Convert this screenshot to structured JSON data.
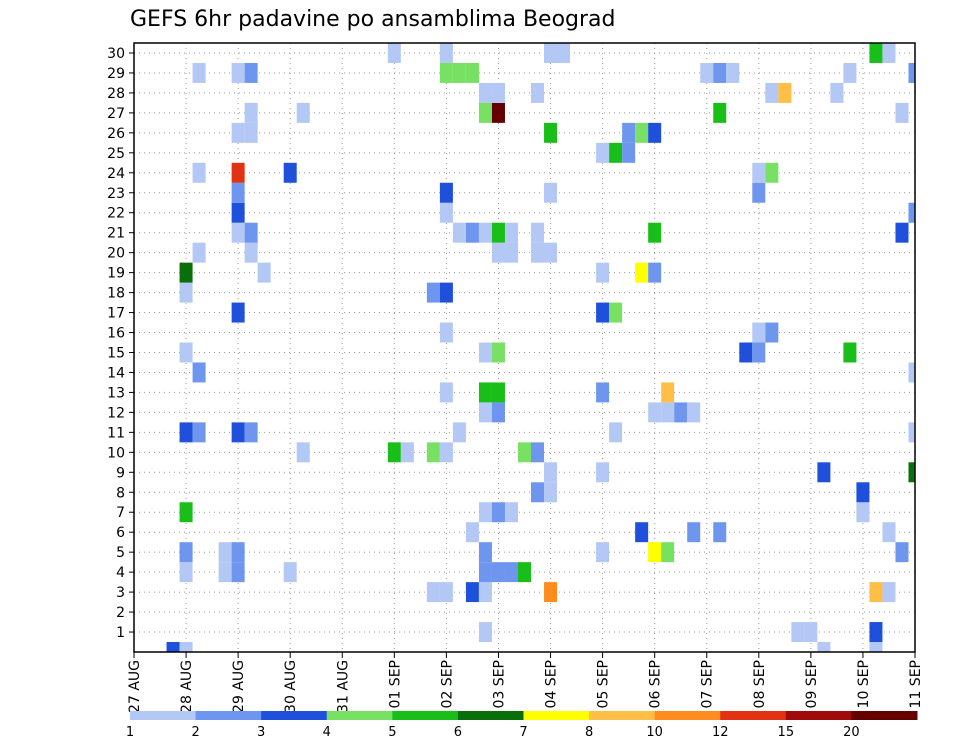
{
  "chart_data": {
    "type": "heatmap",
    "title": "GEFS 6hr padavine po ansamblima Beograd",
    "xlabel": "",
    "ylabel": "",
    "x_tick_labels": [
      "27 AUG",
      "28 AUG",
      "29 AUG",
      "30 AUG",
      "31 AUG",
      "01 SEP",
      "02 SEP",
      "03 SEP",
      "04 SEP",
      "05 SEP",
      "06 SEP",
      "07 SEP",
      "08 SEP",
      "09 SEP",
      "10 SEP",
      "11 SEP"
    ],
    "x_steps_per_day": 4,
    "x_range_steps": [
      0,
      60
    ],
    "y_tick_labels": [
      "1",
      "2",
      "3",
      "4",
      "5",
      "6",
      "7",
      "8",
      "9",
      "10",
      "11",
      "12",
      "13",
      "14",
      "15",
      "16",
      "17",
      "18",
      "19",
      "20",
      "21",
      "22",
      "23",
      "24",
      "25",
      "26",
      "27",
      "28",
      "29",
      "30"
    ],
    "y_range": [
      0,
      30
    ],
    "grid": true,
    "legend": {
      "placement": "bottom",
      "bounds": [
        "1",
        "2",
        "3",
        "4",
        "5",
        "6",
        "7",
        "8",
        "10",
        "12",
        "15",
        "20"
      ],
      "colors": [
        "#b4c8f5",
        "#6e96ee",
        "#1e50dc",
        "#78e164",
        "#19be19",
        "#0a6e0a",
        "#ffff00",
        "#ffbe46",
        "#ff8c1e",
        "#e13214",
        "#a00a0a",
        "#640000"
      ]
    },
    "cells": [
      [
        3,
        0,
        "#1e50dc"
      ],
      [
        4,
        0,
        "#b4c8f5"
      ],
      [
        53,
        0,
        "#b4c8f5"
      ],
      [
        57,
        0,
        "#b4c8f5"
      ],
      [
        27,
        1,
        "#b4c8f5"
      ],
      [
        51,
        1,
        "#b4c8f5"
      ],
      [
        52,
        1,
        "#b4c8f5"
      ],
      [
        57,
        1,
        "#1e50dc"
      ],
      [
        23,
        3,
        "#b4c8f5"
      ],
      [
        24,
        3,
        "#b4c8f5"
      ],
      [
        26,
        3,
        "#1e50dc"
      ],
      [
        27,
        3,
        "#b4c8f5"
      ],
      [
        32,
        3,
        "#ff8c1e"
      ],
      [
        57,
        3,
        "#ffbe46"
      ],
      [
        58,
        3,
        "#b4c8f5"
      ],
      [
        4,
        4,
        "#b4c8f5"
      ],
      [
        7,
        4,
        "#b4c8f5"
      ],
      [
        8,
        4,
        "#6e96ee"
      ],
      [
        12,
        4,
        "#b4c8f5"
      ],
      [
        27,
        4,
        "#6e96ee"
      ],
      [
        28,
        4,
        "#6e96ee"
      ],
      [
        29,
        4,
        "#6e96ee"
      ],
      [
        30,
        4,
        "#19be19"
      ],
      [
        4,
        5,
        "#6e96ee"
      ],
      [
        7,
        5,
        "#b4c8f5"
      ],
      [
        8,
        5,
        "#6e96ee"
      ],
      [
        27,
        5,
        "#6e96ee"
      ],
      [
        36,
        5,
        "#b4c8f5"
      ],
      [
        40,
        5,
        "#ffff00"
      ],
      [
        41,
        5,
        "#78e164"
      ],
      [
        59,
        5,
        "#6e96ee"
      ],
      [
        26,
        6,
        "#b4c8f5"
      ],
      [
        39,
        6,
        "#1e50dc"
      ],
      [
        43,
        6,
        "#6e96ee"
      ],
      [
        45,
        6,
        "#6e96ee"
      ],
      [
        58,
        6,
        "#b4c8f5"
      ],
      [
        4,
        7,
        "#19be19"
      ],
      [
        27,
        7,
        "#b4c8f5"
      ],
      [
        28,
        7,
        "#6e96ee"
      ],
      [
        29,
        7,
        "#b4c8f5"
      ],
      [
        56,
        7,
        "#b4c8f5"
      ],
      [
        31,
        8,
        "#6e96ee"
      ],
      [
        32,
        8,
        "#b4c8f5"
      ],
      [
        56,
        8,
        "#1e50dc"
      ],
      [
        32,
        9,
        "#b4c8f5"
      ],
      [
        36,
        9,
        "#b4c8f5"
      ],
      [
        53,
        9,
        "#1e50dc"
      ],
      [
        60,
        9,
        "#0a6e0a"
      ],
      [
        13,
        10,
        "#b4c8f5"
      ],
      [
        20,
        10,
        "#19be19"
      ],
      [
        21,
        10,
        "#b4c8f5"
      ],
      [
        23,
        10,
        "#78e164"
      ],
      [
        24,
        10,
        "#b4c8f5"
      ],
      [
        30,
        10,
        "#78e164"
      ],
      [
        31,
        10,
        "#6e96ee"
      ],
      [
        4,
        11,
        "#1e50dc"
      ],
      [
        5,
        11,
        "#6e96ee"
      ],
      [
        8,
        11,
        "#1e50dc"
      ],
      [
        9,
        11,
        "#6e96ee"
      ],
      [
        25,
        11,
        "#b4c8f5"
      ],
      [
        37,
        11,
        "#b4c8f5"
      ],
      [
        60,
        11,
        "#b4c8f5"
      ],
      [
        27,
        12,
        "#b4c8f5"
      ],
      [
        28,
        12,
        "#6e96ee"
      ],
      [
        40,
        12,
        "#b4c8f5"
      ],
      [
        41,
        12,
        "#b4c8f5"
      ],
      [
        42,
        12,
        "#6e96ee"
      ],
      [
        43,
        12,
        "#b4c8f5"
      ],
      [
        24,
        13,
        "#b4c8f5"
      ],
      [
        27,
        13,
        "#19be19"
      ],
      [
        28,
        13,
        "#19be19"
      ],
      [
        36,
        13,
        "#6e96ee"
      ],
      [
        41,
        13,
        "#ffbe46"
      ],
      [
        5,
        14,
        "#6e96ee"
      ],
      [
        60,
        14,
        "#b4c8f5"
      ],
      [
        4,
        15,
        "#b4c8f5"
      ],
      [
        27,
        15,
        "#b4c8f5"
      ],
      [
        28,
        15,
        "#78e164"
      ],
      [
        47,
        15,
        "#1e50dc"
      ],
      [
        48,
        15,
        "#6e96ee"
      ],
      [
        55,
        15,
        "#19be19"
      ],
      [
        24,
        16,
        "#b4c8f5"
      ],
      [
        48,
        16,
        "#b4c8f5"
      ],
      [
        49,
        16,
        "#6e96ee"
      ],
      [
        8,
        17,
        "#1e50dc"
      ],
      [
        36,
        17,
        "#1e50dc"
      ],
      [
        37,
        17,
        "#78e164"
      ],
      [
        4,
        18,
        "#b4c8f5"
      ],
      [
        23,
        18,
        "#6e96ee"
      ],
      [
        24,
        18,
        "#1e50dc"
      ],
      [
        4,
        19,
        "#0a6e0a"
      ],
      [
        10,
        19,
        "#b4c8f5"
      ],
      [
        36,
        19,
        "#b4c8f5"
      ],
      [
        39,
        19,
        "#ffff00"
      ],
      [
        40,
        19,
        "#6e96ee"
      ],
      [
        5,
        20,
        "#b4c8f5"
      ],
      [
        9,
        20,
        "#b4c8f5"
      ],
      [
        28,
        20,
        "#b4c8f5"
      ],
      [
        29,
        20,
        "#b4c8f5"
      ],
      [
        31,
        20,
        "#b4c8f5"
      ],
      [
        32,
        20,
        "#b4c8f5"
      ],
      [
        8,
        21,
        "#b4c8f5"
      ],
      [
        9,
        21,
        "#6e96ee"
      ],
      [
        25,
        21,
        "#b4c8f5"
      ],
      [
        26,
        21,
        "#6e96ee"
      ],
      [
        27,
        21,
        "#b4c8f5"
      ],
      [
        28,
        21,
        "#19be19"
      ],
      [
        29,
        21,
        "#b4c8f5"
      ],
      [
        31,
        21,
        "#b4c8f5"
      ],
      [
        40,
        21,
        "#19be19"
      ],
      [
        59,
        21,
        "#1e50dc"
      ],
      [
        8,
        22,
        "#1e50dc"
      ],
      [
        24,
        22,
        "#b4c8f5"
      ],
      [
        60,
        22,
        "#6e96ee"
      ],
      [
        8,
        23,
        "#6e96ee"
      ],
      [
        24,
        23,
        "#1e50dc"
      ],
      [
        32,
        23,
        "#b4c8f5"
      ],
      [
        48,
        23,
        "#6e96ee"
      ],
      [
        5,
        24,
        "#b4c8f5"
      ],
      [
        8,
        24,
        "#e13214"
      ],
      [
        12,
        24,
        "#1e50dc"
      ],
      [
        48,
        24,
        "#b4c8f5"
      ],
      [
        49,
        24,
        "#78e164"
      ],
      [
        36,
        25,
        "#b4c8f5"
      ],
      [
        37,
        25,
        "#19be19"
      ],
      [
        38,
        25,
        "#6e96ee"
      ],
      [
        8,
        26,
        "#b4c8f5"
      ],
      [
        9,
        26,
        "#b4c8f5"
      ],
      [
        32,
        26,
        "#19be19"
      ],
      [
        38,
        26,
        "#6e96ee"
      ],
      [
        39,
        26,
        "#78e164"
      ],
      [
        40,
        26,
        "#1e50dc"
      ],
      [
        9,
        27,
        "#b4c8f5"
      ],
      [
        13,
        27,
        "#b4c8f5"
      ],
      [
        27,
        27,
        "#78e164"
      ],
      [
        28,
        27,
        "#640000"
      ],
      [
        45,
        27,
        "#19be19"
      ],
      [
        59,
        27,
        "#b4c8f5"
      ],
      [
        27,
        28,
        "#b4c8f5"
      ],
      [
        28,
        28,
        "#b4c8f5"
      ],
      [
        31,
        28,
        "#b4c8f5"
      ],
      [
        49,
        28,
        "#b4c8f5"
      ],
      [
        50,
        28,
        "#ffbe46"
      ],
      [
        54,
        28,
        "#b4c8f5"
      ],
      [
        5,
        29,
        "#b4c8f5"
      ],
      [
        8,
        29,
        "#b4c8f5"
      ],
      [
        9,
        29,
        "#6e96ee"
      ],
      [
        24,
        29,
        "#78e164"
      ],
      [
        25,
        29,
        "#78e164"
      ],
      [
        26,
        29,
        "#78e164"
      ],
      [
        44,
        29,
        "#b4c8f5"
      ],
      [
        45,
        29,
        "#6e96ee"
      ],
      [
        46,
        29,
        "#b4c8f5"
      ],
      [
        55,
        29,
        "#b4c8f5"
      ],
      [
        60,
        29,
        "#6e96ee"
      ],
      [
        20,
        30,
        "#b4c8f5"
      ],
      [
        24,
        30,
        "#b4c8f5"
      ],
      [
        32,
        30,
        "#b4c8f5"
      ],
      [
        33,
        30,
        "#b4c8f5"
      ],
      [
        57,
        30,
        "#19be19"
      ],
      [
        58,
        30,
        "#b4c8f5"
      ]
    ]
  }
}
